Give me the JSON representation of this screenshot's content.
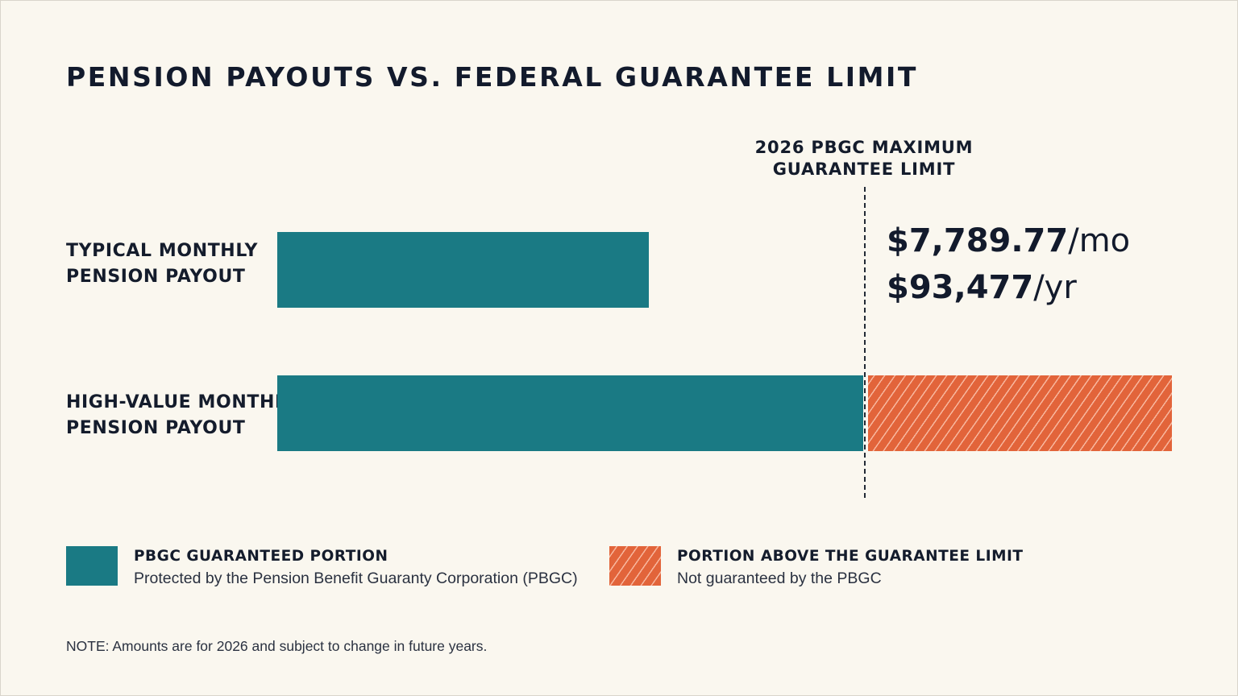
{
  "chart_data": {
    "type": "bar",
    "orientation": "horizontal",
    "stacked": true,
    "title": "PENSION PAYOUTS VS. FEDERAL GUARANTEE LIMIT",
    "categories": [
      [
        "TYPICAL MONTHLY",
        "PENSION PAYOUT"
      ],
      [
        "HIGH-VALUE MONTHLY",
        "PENSION PAYOUT"
      ]
    ],
    "series": [
      {
        "name": "PBGC GUARANTEED PORTION",
        "description": "Protected by the Pension Benefit Guaranty Corporation (PBGC)",
        "color": "#1a7a84",
        "pattern": "solid",
        "values": [
          4930,
          7789.77
        ]
      },
      {
        "name": "PORTION ABOVE THE GUARANTEE LIMIT",
        "description": "Not guaranteed by the PBGC",
        "color": "#e2643a",
        "pattern": "diagonal-hatch",
        "values": [
          0,
          4070
        ]
      }
    ],
    "reference_line": {
      "label": [
        "2026 PBGC MAXIMUM",
        "GUARANTEE LIMIT"
      ],
      "value": 7789.77,
      "style": "dashed",
      "amounts": [
        {
          "value": "$7,789.77",
          "unit": "/mo"
        },
        {
          "value": "$93,477",
          "unit": "/yr"
        }
      ]
    },
    "xlim": [
      0,
      11860
    ],
    "axes_visible": false,
    "grid": false,
    "legend_position": "bottom",
    "note": "NOTE: Amounts are for 2026 and subject to change in future years."
  }
}
